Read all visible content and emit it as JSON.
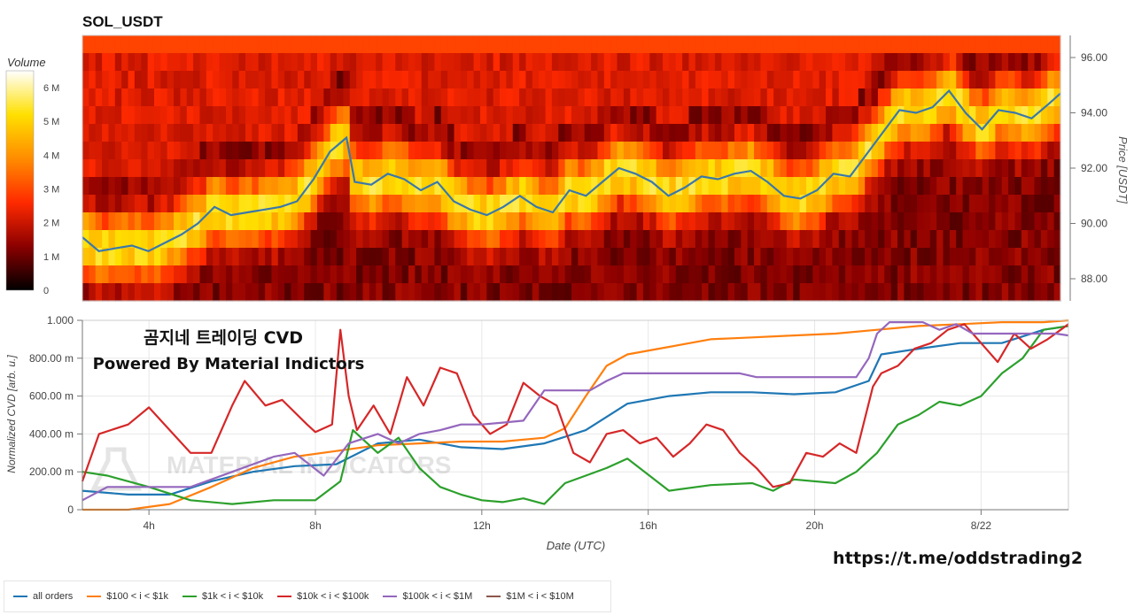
{
  "chart_data": [
    {
      "type": "heatmap",
      "title": "SOL_USDT",
      "ylabel": "Price [USDT]",
      "colorbar_label": "Volume",
      "colorbar_ticks": [
        "0",
        "1 M",
        "2 M",
        "3 M",
        "4 M",
        "5 M",
        "6 M"
      ],
      "colorbar_range": [
        0,
        6500000
      ],
      "y_tick_labels": [
        "88.00",
        "90.00",
        "92.00",
        "94.00",
        "96.00"
      ],
      "y_ticks": [
        88,
        90,
        92,
        94,
        96
      ],
      "ylim": [
        87.2,
        96.8
      ],
      "x_range_hours": [
        2.4,
        26.1
      ],
      "color_scale": [
        "#000000",
        "#8b0000",
        "#ff2a00",
        "#ff8c00",
        "#ffe000",
        "#ffffff"
      ],
      "price_series_color": "#3a78aa",
      "price": {
        "t": [
          2.4,
          2.8,
          3.2,
          3.6,
          4.0,
          4.4,
          4.8,
          5.2,
          5.6,
          6.0,
          6.4,
          6.8,
          7.2,
          7.6,
          8.0,
          8.4,
          8.8,
          9.0,
          9.4,
          9.8,
          10.2,
          10.6,
          11.0,
          11.4,
          11.8,
          12.2,
          12.6,
          13.0,
          13.4,
          13.8,
          14.2,
          14.6,
          15.0,
          15.4,
          15.8,
          16.2,
          16.6,
          17.0,
          17.4,
          17.8,
          18.2,
          18.6,
          19.0,
          19.4,
          19.8,
          20.2,
          20.6,
          21.0,
          21.4,
          21.8,
          22.2,
          22.6,
          23.0,
          23.4,
          23.8,
          24.2,
          24.6,
          25.0,
          25.4,
          25.8,
          26.1
        ],
        "v": [
          89.5,
          89.0,
          89.1,
          89.2,
          89.0,
          89.3,
          89.6,
          90.0,
          90.6,
          90.3,
          90.4,
          90.5,
          90.6,
          90.8,
          91.6,
          92.6,
          93.1,
          91.5,
          91.4,
          91.8,
          91.6,
          91.2,
          91.5,
          90.8,
          90.5,
          90.3,
          90.6,
          91.0,
          90.6,
          90.4,
          91.2,
          91.0,
          91.5,
          92.0,
          91.8,
          91.5,
          91.0,
          91.3,
          91.7,
          91.6,
          91.8,
          91.9,
          91.5,
          91.0,
          90.9,
          91.2,
          91.8,
          91.7,
          92.5,
          93.3,
          94.1,
          94.0,
          94.2,
          94.8,
          94.0,
          93.4,
          94.1,
          94.0,
          93.8,
          94.3,
          94.7
        ]
      }
    },
    {
      "type": "line",
      "title": "곰지네 트레이딩 CVD",
      "subtitle": "Powered By Material Indictors",
      "xlabel": "Date (UTC)",
      "ylabel": "Normalized CVD [arb. u.]",
      "x_tick_labels": [
        "4h",
        "8h",
        "12h",
        "16h",
        "20h",
        "8/22"
      ],
      "x_ticks": [
        4,
        8,
        12,
        16,
        20,
        24
      ],
      "xlim": [
        2.4,
        26.1
      ],
      "y_tick_labels": [
        "0",
        "200.00 m",
        "400.00 m",
        "600.00 m",
        "800.00 m",
        "1.000"
      ],
      "y_ticks": [
        0,
        0.2,
        0.4,
        0.6,
        0.8,
        1.0
      ],
      "ylim": [
        0,
        1.0
      ],
      "grid": true,
      "watermark": "MATERIAL INDICATORS",
      "series": [
        {
          "name": "all orders",
          "color": "#1f77b4",
          "x": [
            2.4,
            3.5,
            4.5,
            5.5,
            6.5,
            7.5,
            8.5,
            9.5,
            10.5,
            11.5,
            12.5,
            13.5,
            14.5,
            15.5,
            16.5,
            17.5,
            18.5,
            19.5,
            20.5,
            21.3,
            21.6,
            22.5,
            23.5,
            24.5,
            25.5,
            26.1
          ],
          "y": [
            0.1,
            0.08,
            0.08,
            0.15,
            0.2,
            0.23,
            0.24,
            0.35,
            0.37,
            0.33,
            0.32,
            0.35,
            0.42,
            0.56,
            0.6,
            0.62,
            0.62,
            0.61,
            0.62,
            0.68,
            0.82,
            0.85,
            0.88,
            0.88,
            0.95,
            0.97
          ]
        },
        {
          "name": "$100 < i < $1k",
          "color": "#ff7f0e",
          "x": [
            2.4,
            3.5,
            4.5,
            5.5,
            6.5,
            7.5,
            8.5,
            9.5,
            10.5,
            11.5,
            12.5,
            13.5,
            14.0,
            14.5,
            15.0,
            15.5,
            16.5,
            17.5,
            18.5,
            19.5,
            20.5,
            21.5,
            22.5,
            23.5,
            24.5,
            25.5,
            26.1
          ],
          "y": [
            0.0,
            0.0,
            0.03,
            0.12,
            0.22,
            0.28,
            0.31,
            0.34,
            0.35,
            0.36,
            0.36,
            0.38,
            0.43,
            0.6,
            0.76,
            0.82,
            0.86,
            0.9,
            0.91,
            0.92,
            0.93,
            0.95,
            0.97,
            0.98,
            0.99,
            0.99,
            1.0
          ]
        },
        {
          "name": "$1k < i < $10k",
          "color": "#2ca02c",
          "x": [
            2.4,
            3.0,
            4.0,
            5.0,
            6.0,
            7.0,
            8.0,
            8.6,
            8.9,
            9.5,
            10.0,
            10.5,
            11.0,
            11.5,
            12.0,
            12.5,
            13.0,
            13.5,
            14.0,
            14.5,
            15.0,
            15.5,
            16.5,
            17.5,
            18.5,
            19.0,
            19.5,
            20.5,
            21.0,
            21.5,
            22.0,
            22.5,
            23.0,
            23.5,
            24.0,
            24.5,
            25.0,
            25.5,
            26.1
          ],
          "y": [
            0.2,
            0.18,
            0.12,
            0.05,
            0.03,
            0.05,
            0.05,
            0.15,
            0.42,
            0.3,
            0.38,
            0.22,
            0.12,
            0.08,
            0.05,
            0.04,
            0.06,
            0.03,
            0.14,
            0.18,
            0.22,
            0.27,
            0.1,
            0.13,
            0.14,
            0.1,
            0.16,
            0.14,
            0.2,
            0.3,
            0.45,
            0.5,
            0.57,
            0.55,
            0.6,
            0.72,
            0.8,
            0.95,
            0.97
          ]
        },
        {
          "name": "$10k < i < $100k",
          "color": "#d62728",
          "x": [
            2.4,
            2.8,
            3.5,
            4.0,
            4.5,
            5.0,
            5.5,
            6.0,
            6.3,
            6.8,
            7.2,
            7.8,
            8.0,
            8.4,
            8.6,
            8.8,
            9.0,
            9.4,
            9.8,
            10.2,
            10.6,
            11.0,
            11.4,
            11.8,
            12.2,
            12.6,
            13.0,
            13.4,
            13.8,
            14.2,
            14.6,
            15.0,
            15.4,
            15.8,
            16.2,
            16.6,
            17.0,
            17.4,
            17.8,
            18.2,
            18.6,
            19.0,
            19.4,
            19.8,
            20.2,
            20.6,
            21.0,
            21.4,
            21.6,
            22.0,
            22.4,
            22.8,
            23.2,
            23.6,
            24.0,
            24.4,
            24.8,
            25.2,
            25.6,
            26.1
          ],
          "y": [
            0.15,
            0.4,
            0.45,
            0.54,
            0.42,
            0.3,
            0.3,
            0.55,
            0.68,
            0.55,
            0.58,
            0.45,
            0.41,
            0.45,
            0.95,
            0.6,
            0.42,
            0.55,
            0.4,
            0.7,
            0.55,
            0.75,
            0.72,
            0.5,
            0.4,
            0.45,
            0.67,
            0.6,
            0.55,
            0.3,
            0.25,
            0.4,
            0.42,
            0.35,
            0.38,
            0.28,
            0.35,
            0.45,
            0.42,
            0.3,
            0.22,
            0.12,
            0.14,
            0.3,
            0.28,
            0.35,
            0.3,
            0.65,
            0.72,
            0.76,
            0.85,
            0.88,
            0.95,
            0.98,
            0.88,
            0.78,
            0.93,
            0.85,
            0.9,
            0.98
          ]
        },
        {
          "name": "$100k < i < $1M",
          "color": "#9467bd",
          "x": [
            2.4,
            3.0,
            4.0,
            5.0,
            6.0,
            7.0,
            7.5,
            8.2,
            8.8,
            9.5,
            10.0,
            10.5,
            11.0,
            11.5,
            12.0,
            12.5,
            13.0,
            13.5,
            13.8,
            14.2,
            14.6,
            15.0,
            15.4,
            15.8,
            16.2,
            16.6,
            17.0,
            17.4,
            17.8,
            18.2,
            18.6,
            19.0,
            19.4,
            19.8,
            20.2,
            20.6,
            21.0,
            21.3,
            21.5,
            21.8,
            22.2,
            22.6,
            23.0,
            23.4,
            23.8,
            24.2,
            24.6,
            25.0,
            25.4,
            25.8,
            26.1
          ],
          "y": [
            0.05,
            0.12,
            0.12,
            0.12,
            0.2,
            0.28,
            0.3,
            0.18,
            0.35,
            0.4,
            0.35,
            0.4,
            0.42,
            0.45,
            0.45,
            0.46,
            0.47,
            0.63,
            0.63,
            0.63,
            0.63,
            0.68,
            0.72,
            0.72,
            0.72,
            0.72,
            0.72,
            0.72,
            0.72,
            0.72,
            0.7,
            0.7,
            0.7,
            0.7,
            0.7,
            0.7,
            0.7,
            0.8,
            0.93,
            0.99,
            0.99,
            0.99,
            0.95,
            0.98,
            0.93,
            0.93,
            0.93,
            0.93,
            0.93,
            0.93,
            0.92
          ]
        },
        {
          "name": "$1M < i < $10M",
          "color": "#8c564b",
          "x": [],
          "y": []
        }
      ]
    }
  ],
  "credit": "https://t.me/oddstrading2"
}
